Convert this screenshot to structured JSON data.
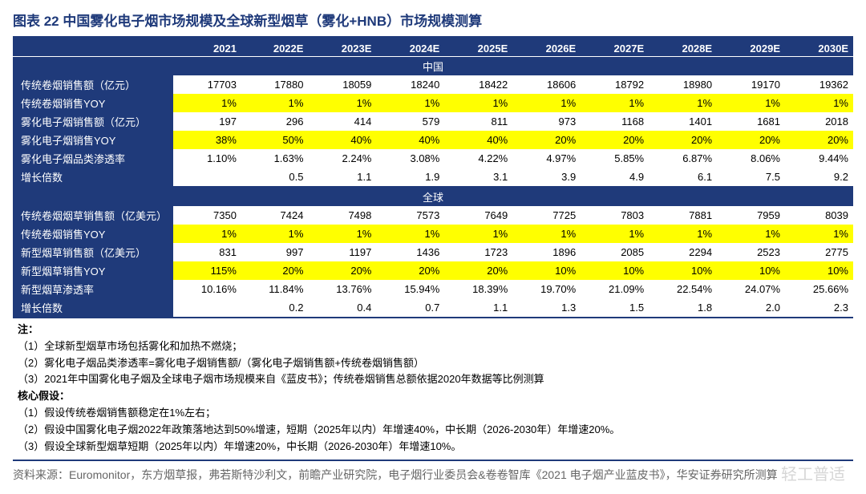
{
  "title": "图表 22  中国雾化电子烟市场规模及全球新型烟草（雾化+HNB）市场规模测算",
  "colors": {
    "brand": "#1f3a7a",
    "highlight": "#ffff00",
    "bg": "#ffffff",
    "text": "#000000",
    "source_text": "#666666"
  },
  "years": [
    "2021",
    "2022E",
    "2023E",
    "2024E",
    "2025E",
    "2026E",
    "2027E",
    "2028E",
    "2029E",
    "2030E"
  ],
  "sections": [
    {
      "name": "中国",
      "rows": [
        {
          "label": "传统卷烟销售额（亿元）",
          "hl": false,
          "cells": [
            "17703",
            "17880",
            "18059",
            "18240",
            "18422",
            "18606",
            "18792",
            "18980",
            "19170",
            "19362"
          ]
        },
        {
          "label": "传统卷烟销售YOY",
          "hl": true,
          "cells": [
            "1%",
            "1%",
            "1%",
            "1%",
            "1%",
            "1%",
            "1%",
            "1%",
            "1%",
            "1%"
          ]
        },
        {
          "label": "雾化电子烟销售额（亿元）",
          "hl": false,
          "cells": [
            "197",
            "296",
            "414",
            "579",
            "811",
            "973",
            "1168",
            "1401",
            "1681",
            "2018"
          ]
        },
        {
          "label": "雾化电子烟销售YOY",
          "hl": true,
          "cells": [
            "38%",
            "50%",
            "40%",
            "40%",
            "40%",
            "20%",
            "20%",
            "20%",
            "20%",
            "20%"
          ]
        },
        {
          "label": "雾化电子烟品类渗透率",
          "hl": false,
          "cells": [
            "1.10%",
            "1.63%",
            "2.24%",
            "3.08%",
            "4.22%",
            "4.97%",
            "5.85%",
            "6.87%",
            "8.06%",
            "9.44%"
          ]
        },
        {
          "label": "增长倍数",
          "hl": false,
          "cells": [
            "",
            "0.5",
            "1.1",
            "1.9",
            "3.1",
            "3.9",
            "4.9",
            "6.1",
            "7.5",
            "9.2"
          ]
        }
      ]
    },
    {
      "name": "全球",
      "rows": [
        {
          "label": "传统卷烟烟草销售额（亿美元）",
          "hl": false,
          "cells": [
            "7350",
            "7424",
            "7498",
            "7573",
            "7649",
            "7725",
            "7803",
            "7881",
            "7959",
            "8039"
          ]
        },
        {
          "label": "传统卷烟销售YOY",
          "hl": true,
          "cells": [
            "1%",
            "1%",
            "1%",
            "1%",
            "1%",
            "1%",
            "1%",
            "1%",
            "1%",
            "1%"
          ]
        },
        {
          "label": "新型烟草销售额（亿美元）",
          "hl": false,
          "cells": [
            "831",
            "997",
            "1197",
            "1436",
            "1723",
            "1896",
            "2085",
            "2294",
            "2523",
            "2775"
          ]
        },
        {
          "label": "新型烟草销售YOY",
          "hl": true,
          "cells": [
            "115%",
            "20%",
            "20%",
            "20%",
            "20%",
            "10%",
            "10%",
            "10%",
            "10%",
            "10%"
          ]
        },
        {
          "label": "新型烟草渗透率",
          "hl": false,
          "cells": [
            "10.16%",
            "11.84%",
            "13.76%",
            "15.94%",
            "18.39%",
            "19.70%",
            "21.09%",
            "22.54%",
            "24.07%",
            "25.66%"
          ]
        },
        {
          "label": "增长倍数",
          "hl": false,
          "cells": [
            "",
            "0.2",
            "0.4",
            "0.7",
            "1.1",
            "1.3",
            "1.5",
            "1.8",
            "2.0",
            "2.3"
          ]
        }
      ]
    }
  ],
  "notes": {
    "heading1": "注：",
    "list1": [
      "（1）全球新型烟草市场包括雾化和加热不燃烧；",
      "（2）雾化电子烟品类渗透率=雾化电子烟销售额/（雾化电子烟销售额+传统卷烟销售额）",
      "（3）2021年中国雾化电子烟及全球电子烟市场规模来自《蓝皮书》；传统卷烟销售总额依据2020年数据等比例测算"
    ],
    "heading2": "核心假设：",
    "list2": [
      "（1）假设传统卷烟销售额稳定在1%左右；",
      "（2）假设中国雾化电子烟2022年政策落地达到50%增速，短期（2025年以内）年增速40%，中长期（2026-2030年）年增速20%。",
      "（3）假设全球新型烟草短期（2025年以内）年增速20%，中长期（2026-2030年）年增速10%。"
    ]
  },
  "source": "资料来源：Euromonitor，东方烟草报，弗若斯特沙利文，前瞻产业研究院，电子烟行业委员会&卷卷智库《2021 电子烟产业蓝皮书》，华安证券研究所测算",
  "watermark": "轻工普适"
}
